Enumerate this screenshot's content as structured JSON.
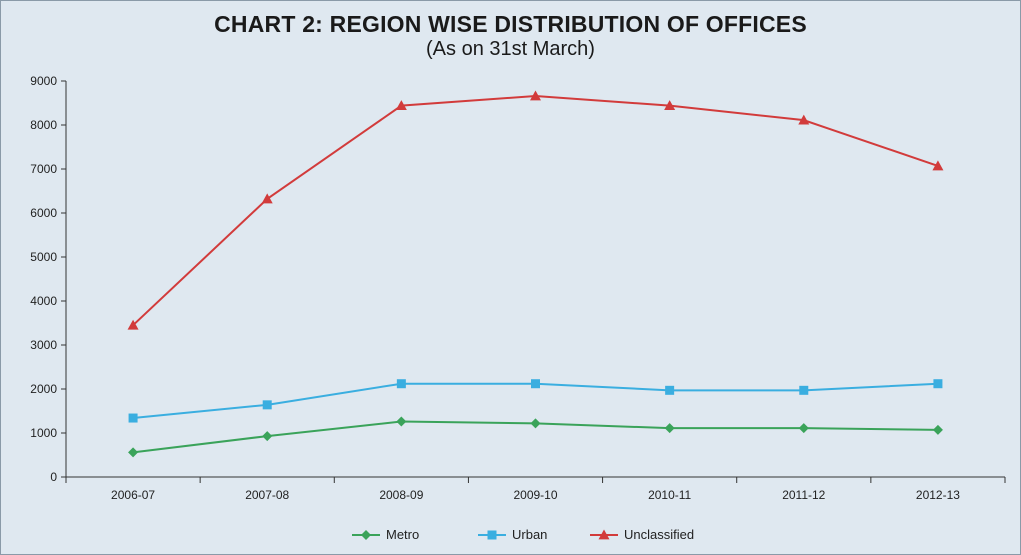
{
  "chart_data": {
    "type": "line",
    "title": "CHART 2: REGION WISE DISTRIBUTION OF OFFICES",
    "subtitle": "(As on 31st  March)",
    "categories": [
      "2006-07",
      "2007-08",
      "2008-09",
      "2009-10",
      "2010-11",
      "2011-12",
      "2012-13"
    ],
    "ylim": [
      0,
      9000
    ],
    "yticks": [
      0,
      1000,
      2000,
      3000,
      4000,
      5000,
      6000,
      7000,
      8000,
      9000
    ],
    "grid": false,
    "legend_position": "bottom",
    "series": [
      {
        "name": "Metro",
        "marker": "diamond",
        "color": "#3aa35a",
        "values": [
          560,
          930,
          1260,
          1220,
          1110,
          1110,
          1070
        ]
      },
      {
        "name": "Urban",
        "marker": "square",
        "color": "#3aaee0",
        "values": [
          1340,
          1640,
          2120,
          2120,
          1970,
          1970,
          2120
        ]
      },
      {
        "name": "Unclassified",
        "marker": "triangle",
        "color": "#d23b3b",
        "values": [
          3450,
          6320,
          8440,
          8660,
          8440,
          8110,
          7070
        ]
      }
    ]
  }
}
